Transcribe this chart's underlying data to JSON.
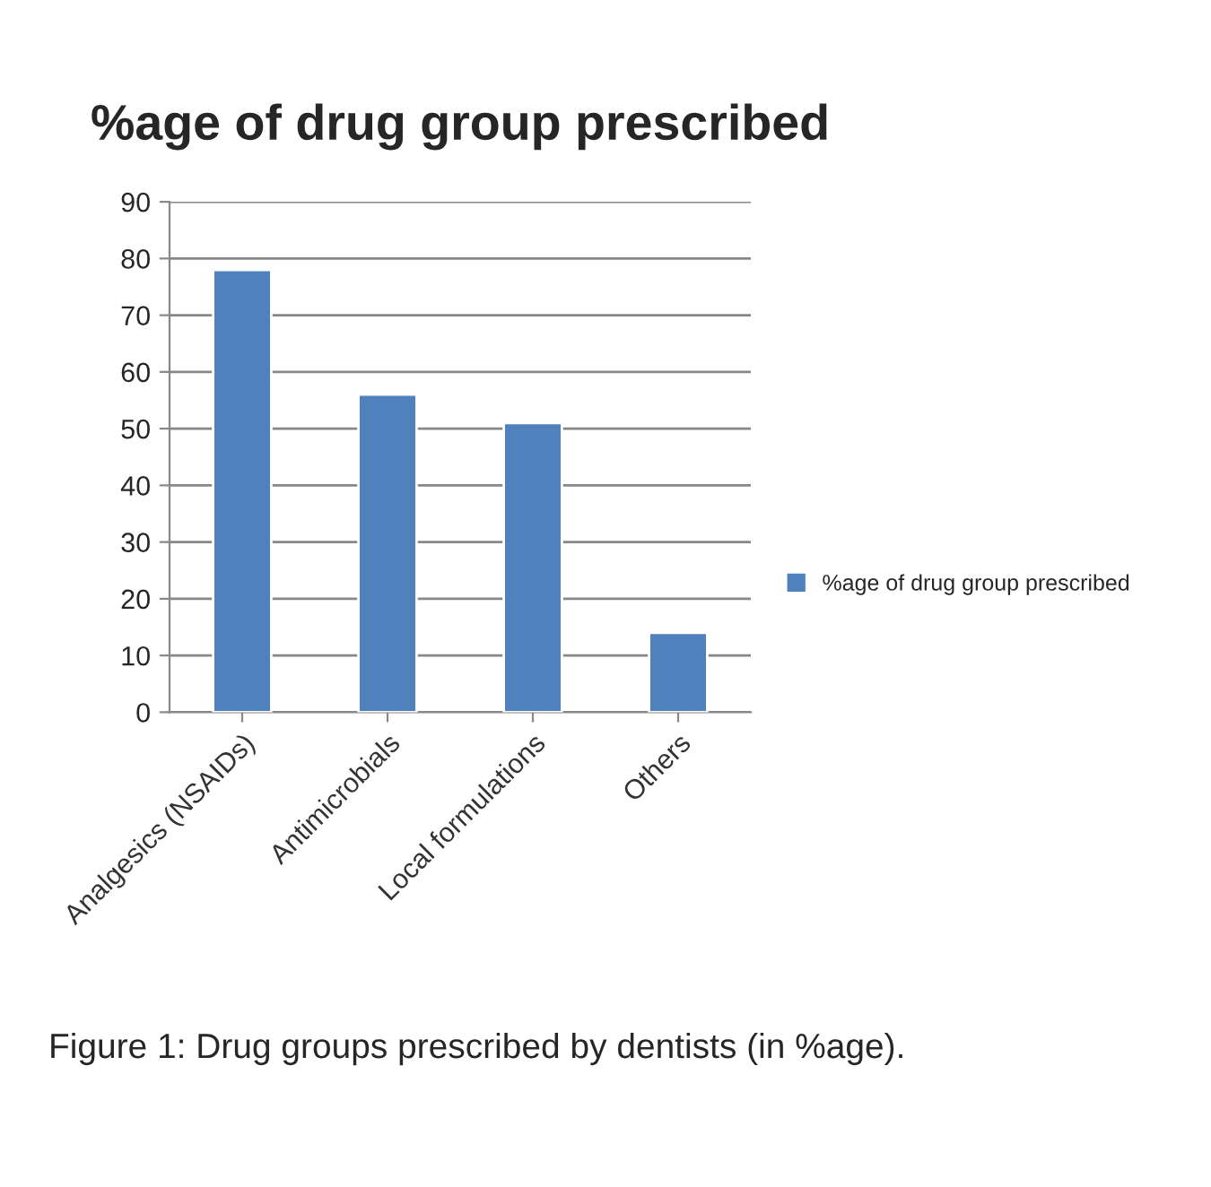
{
  "chart_data": {
    "type": "bar",
    "title": "%age of drug group prescribed",
    "categories": [
      "Analgesics (NSAIDs)",
      "Antimicrobials",
      "Local formulations",
      "Others"
    ],
    "series": [
      {
        "name": "%age of drug group prescribed",
        "color": "#4f81bd",
        "values": [
          78,
          56,
          51,
          14
        ]
      }
    ],
    "ylim": [
      0,
      90
    ],
    "yticks": [
      0,
      10,
      20,
      30,
      40,
      50,
      60,
      70,
      80,
      90
    ],
    "grid": "y",
    "legend": "right",
    "annotations": [
      "Figure 1: Drug groups prescribed by dentists (in %age)."
    ]
  }
}
